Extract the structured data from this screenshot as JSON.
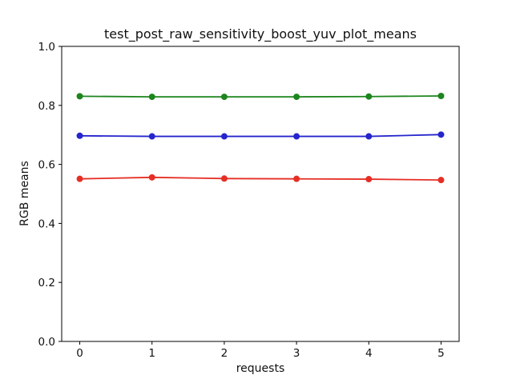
{
  "figure": {
    "background": "#ffffff",
    "axis_color": "#000000",
    "text_color": "#111111"
  },
  "chart_data": {
    "type": "line",
    "title": "test_post_raw_sensitivity_boost_yuv_plot_means",
    "xlabel": "requests",
    "ylabel": "RGB means",
    "x": [
      0,
      1,
      2,
      3,
      4,
      5
    ],
    "series": [
      {
        "name": "green",
        "color": "#1d851d",
        "marker": "circle",
        "values": [
          0.831,
          0.829,
          0.829,
          0.829,
          0.83,
          0.832
        ]
      },
      {
        "name": "blue",
        "color": "#2525cd",
        "marker": "circle",
        "values": [
          0.697,
          0.695,
          0.695,
          0.695,
          0.695,
          0.701
        ]
      },
      {
        "name": "red",
        "color": "#e62e24",
        "marker": "circle",
        "values": [
          0.551,
          0.556,
          0.552,
          0.551,
          0.55,
          0.547
        ]
      }
    ],
    "xlim": [
      -0.25,
      5.25
    ],
    "ylim": [
      0.0,
      1.0
    ],
    "xticks": [
      "0",
      "1",
      "2",
      "3",
      "4",
      "5"
    ],
    "xtick_values": [
      0,
      1,
      2,
      3,
      4,
      5
    ],
    "yticks": [
      "0.0",
      "0.2",
      "0.4",
      "0.6",
      "0.8",
      "1.0"
    ],
    "ytick_values": [
      0.0,
      0.2,
      0.4,
      0.6,
      0.8,
      1.0
    ],
    "grid": false,
    "legend": "none"
  }
}
